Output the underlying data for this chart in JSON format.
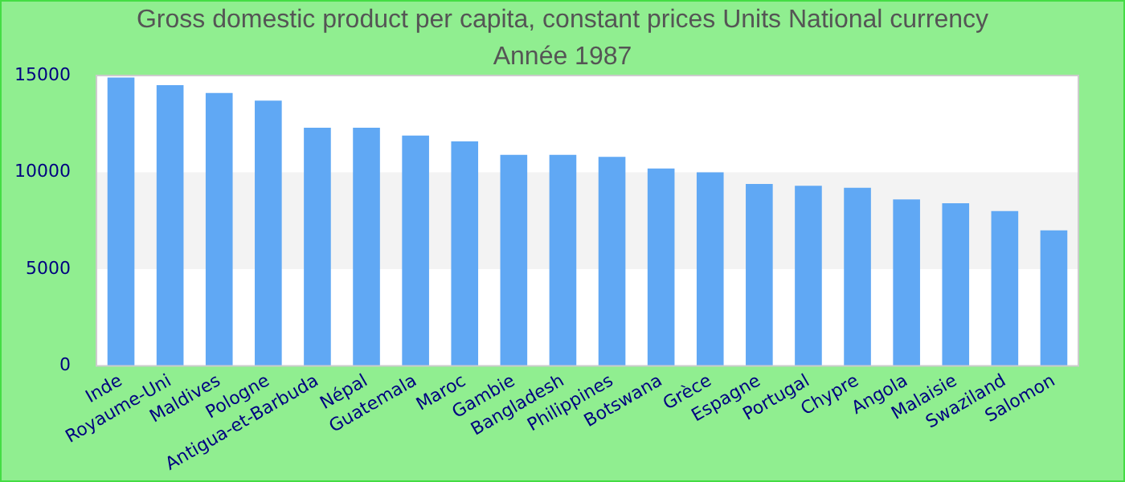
{
  "chart_data": {
    "type": "bar",
    "title": "Gross domestic product per capita, constant prices Units National currency",
    "subtitle": "Année 1987",
    "categories": [
      "Inde",
      "Royaume-Uni",
      "Maldives",
      "Pologne",
      "Antigua-et-Barbuda",
      "Népal",
      "Guatemala",
      "Maroc",
      "Gambie",
      "Bangladesh",
      "Philippines",
      "Botswana",
      "Grèce",
      "Espagne",
      "Portugal",
      "Chypre",
      "Angola",
      "Malaisie",
      "Swaziland",
      "Salomon"
    ],
    "values": [
      14900,
      14500,
      14100,
      13700,
      12300,
      12300,
      11900,
      11600,
      10900,
      10900,
      10800,
      10200,
      10000,
      9400,
      9300,
      9200,
      8600,
      8400,
      8000,
      7000
    ],
    "color": "#60a8f4",
    "ylim": [
      0,
      15000
    ],
    "yticks": [
      0,
      5000,
      10000,
      15000
    ],
    "bands": [
      {
        "axis": "y",
        "from": 5000,
        "to": 10000,
        "color": "#f3f3f3"
      }
    ],
    "legend": false
  }
}
